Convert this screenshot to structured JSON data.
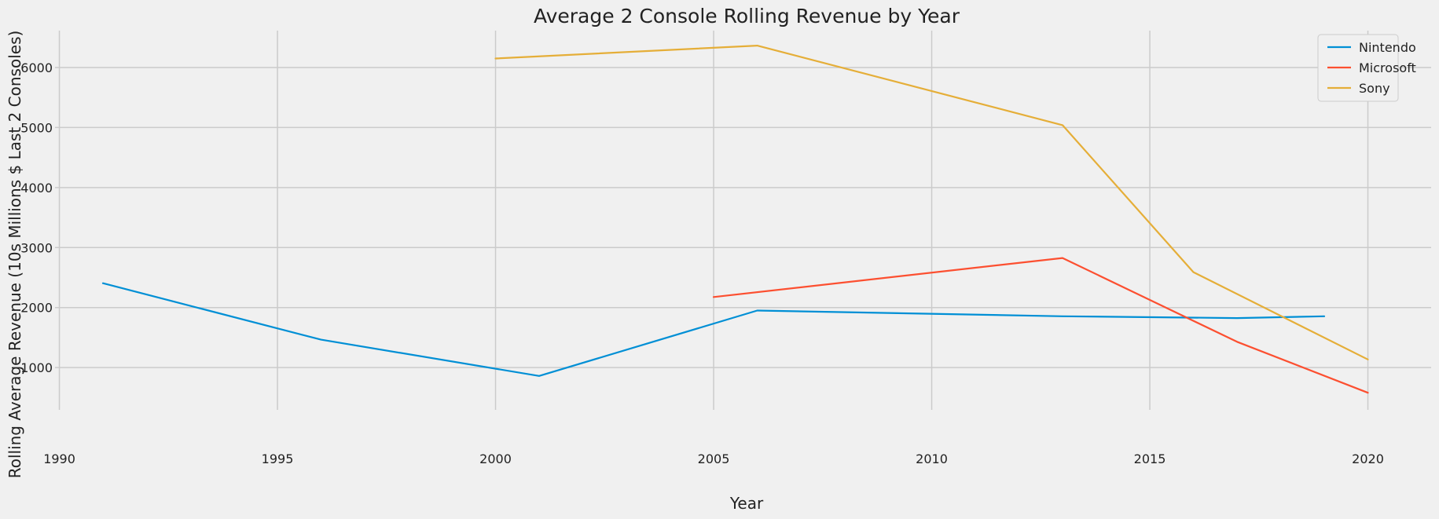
{
  "chart_data": {
    "type": "line",
    "title": "Average 2 Console Rolling Revenue by Year",
    "xlabel": "Year",
    "ylabel": "Rolling Average Revenue (10s Millions $ Last 2 Consoles)",
    "xlim": [
      1989.9,
      2021.45
    ],
    "ylim": [
      295,
      6615
    ],
    "x_ticks": [
      1990,
      1995,
      2000,
      2005,
      2010,
      2015,
      2020
    ],
    "y_ticks": [
      1000,
      2000,
      3000,
      4000,
      5000,
      6000
    ],
    "grid": true,
    "legend_position": "top-right",
    "series": [
      {
        "name": "Nintendo",
        "color": "#008fd5",
        "x": [
          1991,
          1996,
          2001,
          2006,
          2013,
          2017,
          2019
        ],
        "values": [
          2405,
          1465,
          860,
          1950,
          1855,
          1825,
          1855
        ]
      },
      {
        "name": "Microsoft",
        "color": "#fc4f30",
        "x": [
          2005,
          2013,
          2017,
          2020
        ],
        "values": [
          2175,
          2825,
          1430,
          580
        ]
      },
      {
        "name": "Sony",
        "color": "#e5ae38",
        "x": [
          2000,
          2006,
          2013,
          2016,
          2020
        ],
        "values": [
          6150,
          6365,
          5040,
          2590,
          1135
        ]
      }
    ]
  }
}
